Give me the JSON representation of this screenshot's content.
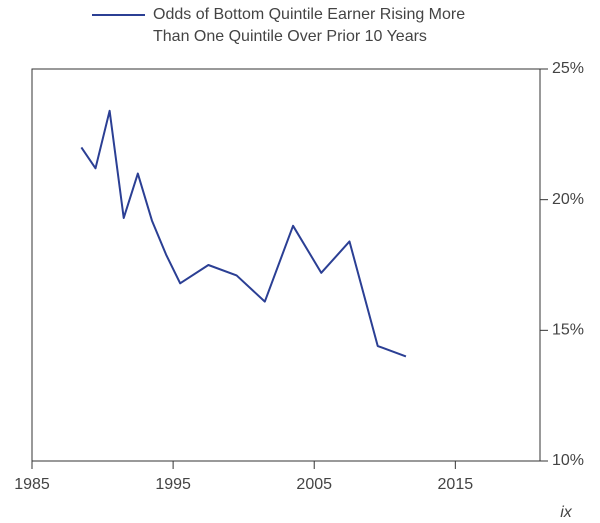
{
  "chart_data": {
    "type": "line",
    "x": [
      1988.5,
      1989.5,
      1990.5,
      1991.5,
      1992.5,
      1993.5,
      1994.5,
      1995.5,
      1997.5,
      1999.5,
      2001.5,
      2003.5,
      2005.5,
      2007.5,
      2009.5,
      2011.5
    ],
    "series": [
      {
        "name": "Odds of Bottom Quintile Earner Rising More Than One Quintile Over Prior 10 Years",
        "color": "#2b3f94",
        "values": [
          22.0,
          21.2,
          23.4,
          19.3,
          21.0,
          19.2,
          17.9,
          16.8,
          17.5,
          17.1,
          16.1,
          19.0,
          17.2,
          18.4,
          14.4,
          14.0
        ]
      }
    ],
    "xlim": [
      1985,
      2021
    ],
    "xticks": [
      1985,
      1995,
      2005,
      2015
    ],
    "ylim": [
      10,
      25
    ],
    "yticks": [
      {
        "value": 10,
        "label": "10%"
      },
      {
        "value": 15,
        "label": "15%"
      },
      {
        "value": 20,
        "label": "20%"
      },
      {
        "value": 25,
        "label": "25%"
      }
    ],
    "legend": "top",
    "grid": false,
    "annotation": "ix"
  }
}
